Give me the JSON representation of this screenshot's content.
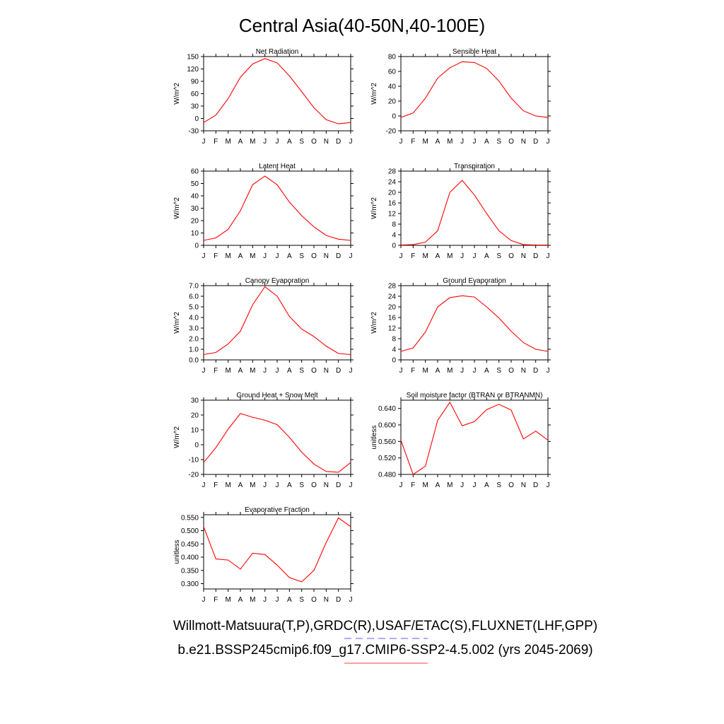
{
  "page": {
    "title": "Central Asia(40-50N,40-100E)",
    "footer_line1": "Willmott-Matsuura(T,P),GRDC(R),USAF/ETAC(S),FLUXNET(LHF,GPP)",
    "footer_line2": "b.e21.BSSP245cmip6.f09_g17.CMIP6-SSP2-4.5.002 (yrs 2045-2069)",
    "footer_line1_marker_color": "#5b5bff",
    "footer_line2_marker_color": "#ff4040"
  },
  "chart_data": [
    {
      "type": "line",
      "title": "Net Radiation",
      "ylabel": "W/m^2",
      "categories": [
        "J",
        "F",
        "M",
        "A",
        "M",
        "J",
        "J",
        "A",
        "S",
        "O",
        "N",
        "D",
        "J"
      ],
      "ylim": [
        -30,
        150
      ],
      "yticks": [
        "-30",
        "0",
        "30",
        "60",
        "90",
        "120",
        "150"
      ],
      "series": [
        {
          "color": "#ff0000",
          "values": [
            -10,
            8,
            48,
            100,
            132,
            145,
            135,
            103,
            65,
            26,
            -3,
            -13,
            -10
          ]
        }
      ]
    },
    {
      "type": "line",
      "title": "Sensible Heat",
      "ylabel": "W/m^2",
      "categories": [
        "J",
        "F",
        "M",
        "A",
        "M",
        "J",
        "J",
        "A",
        "S",
        "O",
        "N",
        "D",
        "J"
      ],
      "ylim": [
        -20,
        80
      ],
      "yticks": [
        "-20",
        "0",
        "20",
        "40",
        "60",
        "80"
      ],
      "series": [
        {
          "color": "#ff0000",
          "values": [
            -2,
            4,
            24,
            51,
            65,
            73,
            72,
            64,
            47,
            24,
            7,
            0,
            -2
          ]
        }
      ]
    },
    {
      "type": "line",
      "title": "Latent Heat",
      "ylabel": "W/m^2",
      "categories": [
        "J",
        "F",
        "M",
        "A",
        "M",
        "J",
        "J",
        "A",
        "S",
        "O",
        "N",
        "D",
        "J"
      ],
      "ylim": [
        0,
        60
      ],
      "yticks": [
        "0",
        "10",
        "20",
        "30",
        "40",
        "50",
        "60"
      ],
      "series": [
        {
          "color": "#ff0000",
          "values": [
            4,
            6,
            13,
            28,
            49,
            56,
            49,
            35,
            24,
            15,
            8,
            5,
            4
          ]
        }
      ]
    },
    {
      "type": "line",
      "title": "Transpiration",
      "ylabel": "W/m^2",
      "categories": [
        "J",
        "F",
        "M",
        "A",
        "M",
        "J",
        "J",
        "A",
        "S",
        "O",
        "N",
        "D",
        "J"
      ],
      "ylim": [
        0,
        28
      ],
      "yticks": [
        "0",
        "4",
        "8",
        "12",
        "16",
        "20",
        "24",
        "28"
      ],
      "series": [
        {
          "color": "#ff0000",
          "values": [
            0.1,
            0.3,
            1.2,
            5.5,
            20,
            24.5,
            19,
            12,
            5.5,
            1.8,
            0.3,
            0.1,
            0.1
          ]
        }
      ]
    },
    {
      "type": "line",
      "title": "Canopy Evaporation",
      "ylabel": "W/m^2",
      "categories": [
        "J",
        "F",
        "M",
        "A",
        "M",
        "J",
        "J",
        "A",
        "S",
        "O",
        "N",
        "D",
        "J"
      ],
      "ylim": [
        0,
        7
      ],
      "yticks": [
        "0.0",
        "1.0",
        "2.0",
        "3.0",
        "4.0",
        "5.0",
        "6.0",
        "7.0"
      ],
      "series": [
        {
          "color": "#ff0000",
          "values": [
            0.5,
            0.7,
            1.5,
            2.7,
            5.2,
            6.9,
            6.0,
            4.1,
            2.9,
            2.2,
            1.3,
            0.6,
            0.5
          ]
        }
      ]
    },
    {
      "type": "line",
      "title": "Ground Evaporation",
      "ylabel": "W/m^2",
      "categories": [
        "J",
        "F",
        "M",
        "A",
        "M",
        "J",
        "J",
        "A",
        "S",
        "O",
        "N",
        "D",
        "J"
      ],
      "ylim": [
        0,
        28
      ],
      "yticks": [
        "0",
        "4",
        "8",
        "12",
        "16",
        "20",
        "24",
        "28"
      ],
      "series": [
        {
          "color": "#ff0000",
          "values": [
            3.2,
            4.5,
            10.5,
            20,
            23.5,
            24.2,
            23.7,
            20,
            15.8,
            10.8,
            6.5,
            4,
            3.2
          ]
        }
      ]
    },
    {
      "type": "line",
      "title": "Ground Heat + Snow Melt",
      "ylabel": "W/m^2",
      "categories": [
        "J",
        "F",
        "M",
        "A",
        "M",
        "J",
        "J",
        "A",
        "S",
        "O",
        "N",
        "D",
        "J"
      ],
      "ylim": [
        -20,
        30
      ],
      "yticks": [
        "-20",
        "-10",
        "0",
        "10",
        "20",
        "30"
      ],
      "series": [
        {
          "color": "#ff0000",
          "values": [
            -12,
            -2,
            10.5,
            21,
            18.5,
            16.5,
            13.5,
            5,
            -5,
            -13,
            -18,
            -18.5,
            -12
          ]
        }
      ]
    },
    {
      "type": "line",
      "title": "Soil moisture factor (BTRAN or BTRANMN)",
      "ylabel": "unitless",
      "categories": [
        "J",
        "F",
        "M",
        "A",
        "M",
        "J",
        "J",
        "A",
        "S",
        "O",
        "N",
        "D",
        "J"
      ],
      "ylim": [
        0.48,
        0.66
      ],
      "yticks": [
        "0.480",
        "0.520",
        "0.560",
        "0.600",
        "0.640"
      ],
      "ytick_values": [
        0.48,
        0.52,
        0.56,
        0.6,
        0.64
      ],
      "series": [
        {
          "color": "#ff0000",
          "values": [
            0.563,
            0.48,
            0.5,
            0.611,
            0.655,
            0.598,
            0.608,
            0.637,
            0.65,
            0.636,
            0.566,
            0.585,
            0.563
          ]
        }
      ]
    },
    {
      "type": "line",
      "title": "Evaporative Fraction",
      "ylabel": "unitless",
      "categories": [
        "J",
        "F",
        "M",
        "A",
        "M",
        "J",
        "J",
        "A",
        "S",
        "O",
        "N",
        "D",
        "J"
      ],
      "ylim": [
        0.28,
        0.56
      ],
      "yticks": [
        "0.300",
        "0.350",
        "0.400",
        "0.450",
        "0.500",
        "0.550"
      ],
      "ytick_values": [
        0.3,
        0.35,
        0.4,
        0.45,
        0.5,
        0.55
      ],
      "series": [
        {
          "color": "#ff0000",
          "values": [
            0.515,
            0.393,
            0.389,
            0.355,
            0.415,
            0.41,
            0.37,
            0.323,
            0.307,
            0.35,
            0.455,
            0.548,
            0.515
          ]
        }
      ]
    }
  ]
}
